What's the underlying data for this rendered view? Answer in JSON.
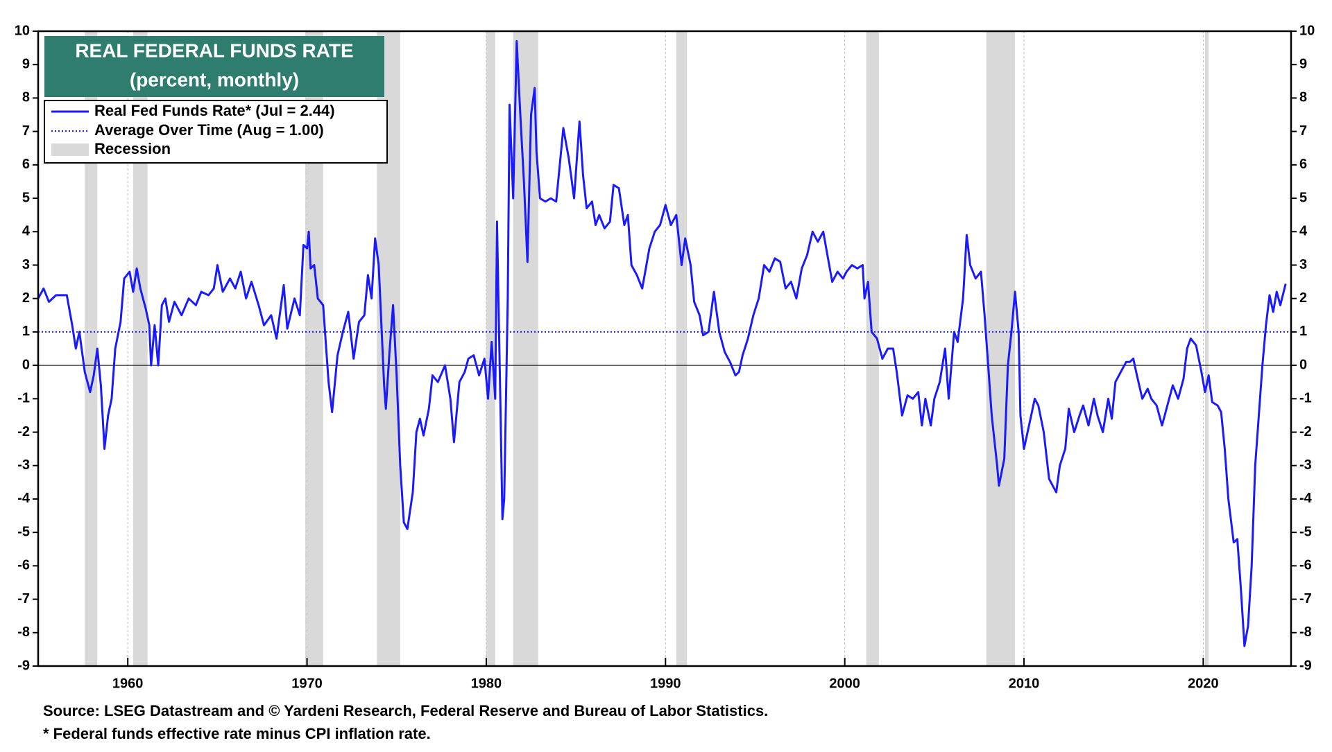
{
  "chart_data": {
    "type": "line",
    "title": "REAL FEDERAL FUNDS RATE",
    "subtitle": "(percent, monthly)",
    "source": "Source: LSEG Datastream and © Yardeni Research, Federal Reserve and Bureau of Labor Statistics.",
    "footnote": "* Federal funds effective rate minus CPI inflation rate.",
    "xlim": [
      1955,
      2024.9
    ],
    "xticks": [
      1960,
      1970,
      1980,
      1990,
      2000,
      2010,
      2020
    ],
    "ylim": [
      -9,
      10
    ],
    "yticks": [
      -9,
      -8,
      -7,
      -6,
      -5,
      -4,
      -3,
      -2,
      -1,
      0,
      1,
      2,
      3,
      4,
      5,
      6,
      7,
      8,
      9,
      10
    ],
    "grid": true,
    "recession_label": "Recession",
    "recession_color": "#d9d9d9",
    "recessions": [
      [
        1957.6,
        1958.3
      ],
      [
        1960.3,
        1961.1
      ],
      [
        1969.9,
        1970.9
      ],
      [
        1973.9,
        1975.2
      ],
      [
        1980.0,
        1980.5
      ],
      [
        1981.5,
        1982.9
      ],
      [
        1990.6,
        1991.2
      ],
      [
        2001.2,
        2001.9
      ],
      [
        2007.9,
        2009.5
      ],
      [
        2020.1,
        2020.3
      ]
    ],
    "series": [
      {
        "name": "Real Fed Funds Rate* (Jul = 2.44)",
        "color": "#1a1aff",
        "x": [
          1955.0,
          1955.3,
          1955.6,
          1956.0,
          1956.6,
          1956.9,
          1957.1,
          1957.3,
          1957.6,
          1957.9,
          1958.1,
          1958.3,
          1958.5,
          1958.7,
          1958.9,
          1959.1,
          1959.3,
          1959.6,
          1959.8,
          1960.1,
          1960.3,
          1960.5,
          1960.7,
          1961.0,
          1961.2,
          1961.3,
          1961.5,
          1961.7,
          1961.9,
          1962.1,
          1962.3,
          1962.6,
          1963.0,
          1963.4,
          1963.8,
          1964.1,
          1964.5,
          1964.8,
          1965.0,
          1965.3,
          1965.7,
          1966.0,
          1966.3,
          1966.6,
          1966.9,
          1967.3,
          1967.6,
          1968.0,
          1968.3,
          1968.7,
          1968.9,
          1969.3,
          1969.6,
          1969.8,
          1970.0,
          1970.1,
          1970.2,
          1970.4,
          1970.6,
          1970.9,
          1971.2,
          1971.4,
          1971.7,
          1972.0,
          1972.3,
          1972.6,
          1972.9,
          1973.2,
          1973.4,
          1973.6,
          1973.8,
          1974.0,
          1974.3,
          1974.4,
          1974.6,
          1974.8,
          1975.0,
          1975.2,
          1975.4,
          1975.6,
          1975.9,
          1976.1,
          1976.3,
          1976.5,
          1976.8,
          1977.0,
          1977.3,
          1977.7,
          1978.0,
          1978.2,
          1978.5,
          1978.8,
          1979.0,
          1979.3,
          1979.6,
          1979.9,
          1980.1,
          1980.3,
          1980.5,
          1980.6,
          1980.8,
          1980.9,
          1981.0,
          1981.2,
          1981.3,
          1981.5,
          1981.7,
          1981.9,
          1982.1,
          1982.3,
          1982.5,
          1982.7,
          1982.8,
          1983.0,
          1983.3,
          1983.6,
          1983.9,
          1984.1,
          1984.3,
          1984.6,
          1984.9,
          1985.2,
          1985.4,
          1985.6,
          1985.9,
          1986.1,
          1986.3,
          1986.6,
          1986.9,
          1987.1,
          1987.4,
          1987.7,
          1987.9,
          1988.1,
          1988.4,
          1988.7,
          1988.9,
          1989.1,
          1989.4,
          1989.7,
          1990.0,
          1990.3,
          1990.6,
          1990.9,
          1991.1,
          1991.4,
          1991.6,
          1991.9,
          1992.1,
          1992.4,
          1992.7,
          1993.0,
          1993.3,
          1993.6,
          1993.9,
          1994.1,
          1994.3,
          1994.6,
          1994.9,
          1995.2,
          1995.5,
          1995.8,
          1996.1,
          1996.4,
          1996.7,
          1997.0,
          1997.3,
          1997.6,
          1997.9,
          1998.2,
          1998.5,
          1998.8,
          1999.0,
          1999.3,
          1999.6,
          1999.9,
          2000.1,
          2000.4,
          2000.7,
          2001.0,
          2001.1,
          2001.3,
          2001.5,
          2001.8,
          2002.1,
          2002.4,
          2002.7,
          2002.9,
          2003.2,
          2003.5,
          2003.8,
          2004.1,
          2004.3,
          2004.5,
          2004.8,
          2005.0,
          2005.3,
          2005.6,
          2005.8,
          2006.1,
          2006.3,
          2006.6,
          2006.8,
          2007.0,
          2007.3,
          2007.6,
          2007.8,
          2008.0,
          2008.2,
          2008.5,
          2008.6,
          2008.9,
          2009.1,
          2009.3,
          2009.5,
          2009.7,
          2009.8,
          2010.0,
          2010.2,
          2010.4,
          2010.6,
          2010.8,
          2011.1,
          2011.4,
          2011.6,
          2011.8,
          2012.0,
          2012.3,
          2012.5,
          2012.8,
          2013.1,
          2013.3,
          2013.6,
          2013.9,
          2014.1,
          2014.4,
          2014.7,
          2014.9,
          2015.1,
          2015.4,
          2015.7,
          2015.9,
          2016.1,
          2016.3,
          2016.6,
          2016.9,
          2017.1,
          2017.4,
          2017.7,
          2018.0,
          2018.3,
          2018.6,
          2018.9,
          2019.1,
          2019.3,
          2019.6,
          2019.9,
          2020.1,
          2020.3,
          2020.5,
          2020.8,
          2021.0,
          2021.2,
          2021.4,
          2021.7,
          2021.9,
          2022.1,
          2022.3,
          2022.5,
          2022.7,
          2022.9,
          2023.1,
          2023.3,
          2023.5,
          2023.7,
          2023.9,
          2024.1,
          2024.3,
          2024.6
        ],
        "values": [
          2.0,
          2.3,
          1.9,
          2.1,
          2.1,
          1.2,
          0.5,
          1.0,
          -0.2,
          -0.8,
          -0.3,
          0.5,
          -0.6,
          -2.5,
          -1.5,
          -1.0,
          0.5,
          1.3,
          2.6,
          2.8,
          2.2,
          2.9,
          2.3,
          1.7,
          1.2,
          0.0,
          1.2,
          0.0,
          1.8,
          2.0,
          1.3,
          1.9,
          1.5,
          2.0,
          1.8,
          2.2,
          2.1,
          2.3,
          3.0,
          2.2,
          2.6,
          2.3,
          2.8,
          2.0,
          2.5,
          1.8,
          1.2,
          1.5,
          0.8,
          2.4,
          1.1,
          2.0,
          1.5,
          3.6,
          3.5,
          4.0,
          2.9,
          3.0,
          2.0,
          1.8,
          -0.5,
          -1.4,
          0.3,
          1.0,
          1.6,
          0.2,
          1.3,
          1.5,
          2.7,
          2.0,
          3.8,
          3.0,
          -0.6,
          -1.3,
          0.4,
          1.8,
          -0.3,
          -3.0,
          -4.7,
          -4.9,
          -3.8,
          -2.0,
          -1.6,
          -2.1,
          -1.3,
          -0.3,
          -0.5,
          0.0,
          -1.0,
          -2.3,
          -0.5,
          -0.2,
          0.2,
          0.3,
          -0.3,
          0.2,
          -1.0,
          0.7,
          -1.0,
          4.3,
          -1.5,
          -4.6,
          -4.0,
          2.0,
          7.8,
          5.0,
          9.7,
          7.5,
          5.5,
          3.1,
          7.5,
          8.3,
          6.4,
          5.0,
          4.9,
          5.0,
          4.9,
          6.0,
          7.1,
          6.2,
          5.0,
          7.3,
          5.7,
          4.7,
          4.9,
          4.2,
          4.5,
          4.1,
          4.3,
          5.4,
          5.3,
          4.2,
          4.5,
          3.0,
          2.7,
          2.3,
          2.9,
          3.5,
          4.0,
          4.2,
          4.8,
          4.2,
          4.5,
          3.0,
          3.8,
          3.0,
          1.9,
          1.5,
          0.9,
          1.0,
          2.2,
          1.0,
          0.4,
          0.1,
          -0.3,
          -0.2,
          0.3,
          0.8,
          1.5,
          2.0,
          3.0,
          2.8,
          3.2,
          3.1,
          2.3,
          2.5,
          2.0,
          2.9,
          3.3,
          4.0,
          3.7,
          4.0,
          3.4,
          2.5,
          2.8,
          2.6,
          2.8,
          3.0,
          2.9,
          3.0,
          2.0,
          2.5,
          1.0,
          0.8,
          0.2,
          0.5,
          0.5,
          -0.2,
          -1.5,
          -0.9,
          -1.0,
          -0.8,
          -1.8,
          -1.0,
          -1.8,
          -1.0,
          -0.5,
          0.5,
          -1.0,
          1.0,
          0.7,
          2.0,
          3.9,
          3.0,
          2.6,
          2.8,
          1.5,
          0.0,
          -1.5,
          -3.0,
          -3.6,
          -2.8,
          0.0,
          1.0,
          2.2,
          1.0,
          -1.5,
          -2.5,
          -2.0,
          -1.5,
          -1.0,
          -1.2,
          -2.0,
          -3.4,
          -3.6,
          -3.8,
          -3.0,
          -2.5,
          -1.3,
          -2.0,
          -1.5,
          -1.2,
          -1.8,
          -1.0,
          -1.5,
          -2.0,
          -1.0,
          -1.6,
          -0.5,
          -0.2,
          0.1,
          0.1,
          0.2,
          -0.3,
          -1.0,
          -0.7,
          -1.0,
          -1.2,
          -1.8,
          -1.2,
          -0.6,
          -1.0,
          -0.4,
          0.5,
          0.8,
          0.6,
          -0.2,
          -0.8,
          -0.3,
          -1.1,
          -1.2,
          -1.4,
          -2.5,
          -4.0,
          -5.3,
          -5.2,
          -6.7,
          -8.4,
          -7.8,
          -6.0,
          -3.0,
          -1.5,
          0.0,
          1.2,
          2.1,
          1.6,
          2.2,
          1.8,
          2.44
        ]
      },
      {
        "name": "Average Over Time (Aug = 1.00)",
        "color": "#1a1aff",
        "value": 1.0,
        "dash": "dotted"
      }
    ],
    "title_box_color": "#2e7d6e"
  }
}
